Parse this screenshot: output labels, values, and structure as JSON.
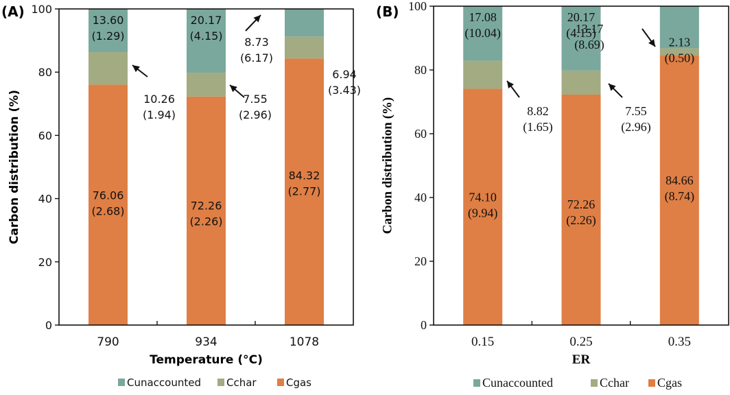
{
  "chart_data": [
    {
      "panel_label": "(A)",
      "type": "bar",
      "stacked": true,
      "xlabel": "Temperature (°C)",
      "ylabel": "Carbon distribution (%)",
      "ylim": [
        0,
        100
      ],
      "yticks": [
        0,
        20,
        40,
        60,
        80,
        100
      ],
      "categories": [
        "790",
        "934",
        "1078"
      ],
      "series": [
        {
          "name": "Cgas",
          "color": "#df7f45",
          "values": [
            76.06,
            72.26,
            84.32
          ],
          "errors": [
            2.68,
            2.26,
            2.77
          ]
        },
        {
          "name": "Cchar",
          "color": "#a3ab82",
          "values": [
            10.26,
            7.55,
            6.94
          ],
          "errors": [
            1.94,
            2.96,
            3.43
          ]
        },
        {
          "name": "Cunaccounted",
          "color": "#7aa89d",
          "values": [
            13.6,
            20.17,
            8.73
          ],
          "errors": [
            1.29,
            4.15,
            6.17
          ]
        }
      ],
      "labels": [
        {
          "text": "76.06",
          "sub": "(2.68)"
        },
        {
          "text": "72.26",
          "sub": "(2.26)"
        },
        {
          "text": "84.32",
          "sub": "(2.77)"
        },
        {
          "text": "10.26",
          "sub": "(1.94)"
        },
        {
          "text": "7.55",
          "sub": "(2.96)"
        },
        {
          "text": "6.94",
          "sub": "(3.43)"
        },
        {
          "text": "13.60",
          "sub": "(1.29)"
        },
        {
          "text": "20.17",
          "sub": "(4.15)"
        },
        {
          "text": "8.73",
          "sub": "(6.17)"
        }
      ],
      "legend": [
        "Cunaccounted",
        "Cchar",
        "Cgas"
      ],
      "legend_position": "bottom"
    },
    {
      "panel_label": "(B)",
      "type": "bar",
      "stacked": true,
      "xlabel": "ER",
      "ylabel": "Carbon distribution (%)",
      "ylim": [
        0,
        100
      ],
      "yticks": [
        0,
        20,
        40,
        60,
        80,
        100
      ],
      "categories": [
        "0.15",
        "0.25",
        "0.35"
      ],
      "series": [
        {
          "name": "Cgas",
          "color": "#df7f45",
          "values": [
            74.1,
            72.26,
            84.66
          ],
          "errors": [
            9.94,
            2.26,
            8.74
          ]
        },
        {
          "name": "Cchar",
          "color": "#a3ab82",
          "values": [
            8.82,
            7.55,
            2.13
          ],
          "errors": [
            1.65,
            2.96,
            0.5
          ]
        },
        {
          "name": "Cunaccounted",
          "color": "#7aa89d",
          "values": [
            17.08,
            20.17,
            13.17
          ],
          "errors": [
            10.04,
            4.15,
            8.69
          ]
        }
      ],
      "labels": [
        {
          "text": "74.10",
          "sub": "(9.94)"
        },
        {
          "text": "72.26",
          "sub": "(2.26)"
        },
        {
          "text": "84.66",
          "sub": "(8.74)"
        },
        {
          "text": "8.82",
          "sub": "(1.65)"
        },
        {
          "text": "7.55",
          "sub": "(2.96)"
        },
        {
          "text": "2.13",
          "sub": "(0.50)"
        },
        {
          "text": "17.08",
          "sub": "(10.04)"
        },
        {
          "text": "20.17",
          "sub": "(4.15)"
        },
        {
          "text": "13.17",
          "sub": "(8.69)"
        }
      ],
      "legend": [
        "Cunaccounted",
        "Cchar",
        "Cgas"
      ],
      "legend_position": "bottom"
    }
  ]
}
